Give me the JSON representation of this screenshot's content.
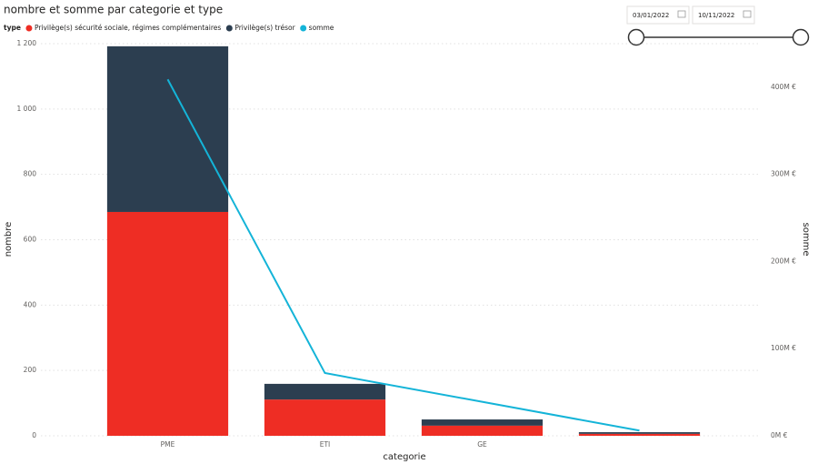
{
  "chart_data": {
    "type": "bar-line",
    "title": "nombre et somme par categorie et type",
    "legend_title": "type",
    "x_label": "categorie",
    "y_label": "nombre",
    "y2_label": "somme",
    "categories": [
      "PME",
      "ETI",
      "GE",
      null
    ],
    "series": [
      {
        "name": "Privilège(s) sécurité sociale, régimes complémentaires",
        "color": "#ee2d24",
        "type": "bar",
        "values": [
          685,
          111,
          31,
          6
        ]
      },
      {
        "name": "Privilège(s) trésor",
        "color": "#2c3e50",
        "type": "bar",
        "values": [
          507,
          48,
          19,
          5
        ]
      },
      {
        "name": "somme",
        "color": "#14b4d8",
        "type": "line",
        "axis": "y2",
        "values": [
          409000000,
          72000000,
          39000000,
          6000000
        ]
      }
    ],
    "ylim": [
      0,
      1200
    ],
    "yticks": [
      0,
      200,
      400,
      600,
      800,
      {
        "value": 1000,
        "label": "1 000"
      },
      {
        "value": 1200,
        "label": "1 200"
      }
    ],
    "y2lim": [
      0,
      450000000
    ],
    "y2ticks": [
      {
        "value": 0,
        "label": "0M €"
      },
      {
        "value": 100000000,
        "label": "100M €"
      },
      {
        "value": 200000000,
        "label": "200M €"
      },
      {
        "value": 300000000,
        "label": "300M €"
      },
      {
        "value": 400000000,
        "label": "400M €"
      }
    ],
    "grid": true
  },
  "date_slicer": {
    "start": "03/01/2022",
    "end": "10/11/2022"
  }
}
